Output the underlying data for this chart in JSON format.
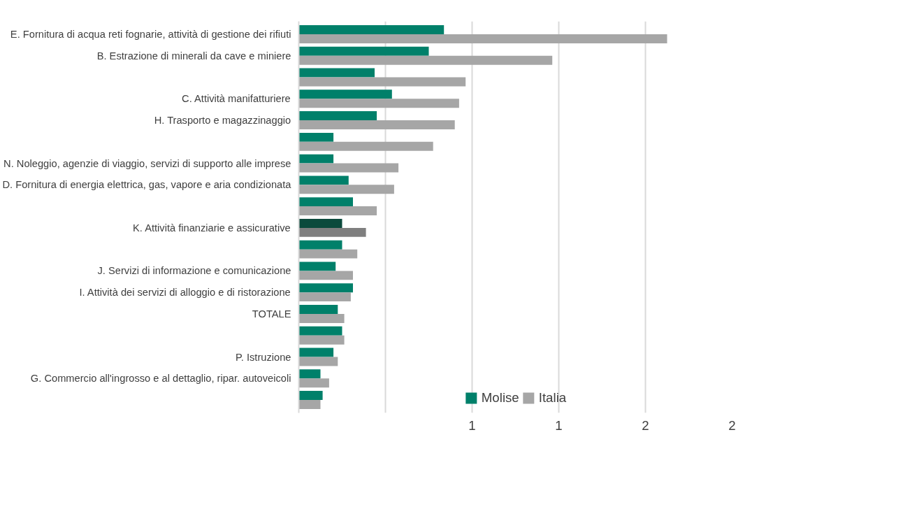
{
  "chart_data": {
    "type": "bar",
    "orientation": "horizontal",
    "categories": [
      "E. Fornitura di acqua reti fognarie, attività di gestione dei rifiuti",
      "B. Estrazione di minerali da cave e miniere",
      null,
      "C. Attività manifatturiere",
      "H. Trasporto e magazzinaggio",
      null,
      "N. Noleggio, agenzie di viaggio, servizi di supporto alle imprese",
      "D. Fornitura di energia elettrica, gas, vapore e aria condizionata",
      null,
      "K. Attività finanziarie e assicurative",
      null,
      "J. Servizi di informazione e comunicazione",
      "I. Attività dei servizi di alloggio e di ristorazione",
      "TOTALE",
      null,
      "P. Istruzione",
      "G. Commercio all'ingrosso e al dettaglio, ripar. autoveicoli",
      null
    ],
    "series": [
      {
        "name": "Molise",
        "color": "#00806a",
        "colors": [
          "#00806a",
          "#00806a",
          "#00806a",
          "#00806a",
          "#00806a",
          "#00806a",
          "#00806a",
          "#00806a",
          "#00806a",
          "#0b4a3c",
          "#00806a",
          "#00806a",
          "#00806a",
          "#00806a",
          "#00806a",
          "#00806a",
          "#00806a",
          "#00806a"
        ],
        "values": [
          0.67,
          0.6,
          0.35,
          0.43,
          0.36,
          0.16,
          0.16,
          0.23,
          0.25,
          0.2,
          0.2,
          0.17,
          0.25,
          0.18,
          0.2,
          0.16,
          0.1,
          0.11
        ]
      },
      {
        "name": "Italia",
        "color": "#a6a6a6",
        "colors": [
          "#a6a6a6",
          "#a6a6a6",
          "#a6a6a6",
          "#a6a6a6",
          "#a6a6a6",
          "#a6a6a6",
          "#a6a6a6",
          "#a6a6a6",
          "#a6a6a6",
          "#7f7f7f",
          "#a6a6a6",
          "#a6a6a6",
          "#a6a6a6",
          "#a6a6a6",
          "#a6a6a6",
          "#a6a6a6",
          "#a6a6a6",
          "#a6a6a6"
        ],
        "values": [
          1.7,
          1.17,
          0.77,
          0.74,
          0.72,
          0.62,
          0.46,
          0.44,
          0.36,
          0.31,
          0.27,
          0.25,
          0.24,
          0.21,
          0.21,
          0.18,
          0.14,
          0.1
        ]
      }
    ],
    "xlim": [
      0,
      2.0
    ],
    "xticks": [
      {
        "value": 0,
        "label": null
      },
      {
        "value": 0.4,
        "label": null
      },
      {
        "value": 0.8,
        "label": "1"
      },
      {
        "value": 1.2,
        "label": "1"
      },
      {
        "value": 1.6,
        "label": "2"
      },
      {
        "value": 2.0,
        "label": "2"
      }
    ],
    "grid": "x",
    "legend": "bottom"
  }
}
